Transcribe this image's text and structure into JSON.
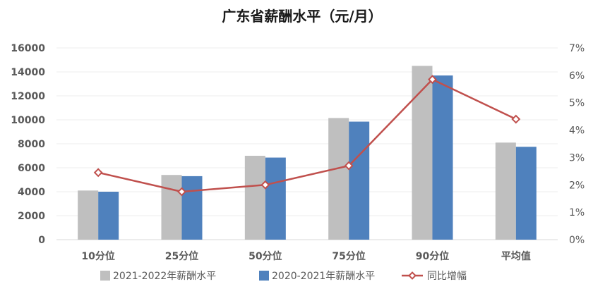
{
  "chart_data": {
    "type": "bar",
    "title": "广东省薪酬水平（元/月）",
    "categories": [
      "10分位",
      "25分位",
      "50分位",
      "75分位",
      "90分位",
      "平均值"
    ],
    "series": [
      {
        "name": "2021-2022年薪酬水平",
        "type": "bar",
        "axis": "left",
        "color": "#bfbfbf",
        "values": [
          4100,
          5400,
          7000,
          10150,
          14500,
          8100
        ]
      },
      {
        "name": "2020-2021年薪酬水平",
        "type": "bar",
        "axis": "left",
        "color": "#4f81bd",
        "values": [
          4000,
          5300,
          6850,
          9850,
          13700,
          7750
        ]
      },
      {
        "name": "同比增幅",
        "type": "line",
        "axis": "right",
        "color": "#c0504d",
        "values": [
          2.45,
          1.75,
          2.0,
          2.7,
          5.85,
          4.4
        ]
      }
    ],
    "y_left": {
      "min": 0,
      "max": 16000,
      "ticks": [
        "0",
        "2000",
        "4000",
        "6000",
        "8000",
        "10000",
        "12000",
        "14000",
        "16000"
      ]
    },
    "y_right": {
      "min": 0,
      "max": 7,
      "ticks": [
        "0%",
        "1%",
        "2%",
        "3%",
        "4%",
        "5%",
        "6%",
        "7%"
      ]
    },
    "grid": true,
    "legend": "bottom"
  }
}
